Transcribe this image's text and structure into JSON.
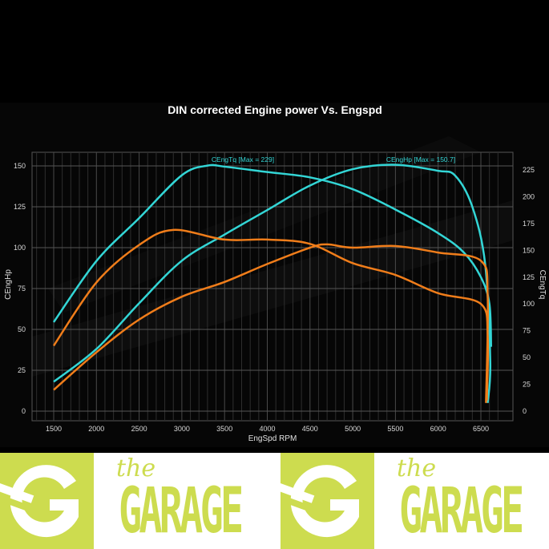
{
  "chart_data": {
    "type": "line",
    "title": "DIN corrected Engine power Vs. Engspd",
    "xlabel": "EngSpd RPM",
    "ylabel_left": "CEngHp",
    "ylabel_right": "CEngTq",
    "xlim": [
      1200,
      6850
    ],
    "ylim_left": [
      0,
      158
    ],
    "ylim_right": [
      0,
      237
    ],
    "x_ticks": [
      "1500",
      "2000",
      "2500",
      "3000",
      "3500",
      "4000",
      "4500",
      "5000",
      "5500",
      "6000",
      "6500"
    ],
    "y_left_ticks": [
      "0",
      "25",
      "50",
      "75",
      "100",
      "125",
      "150"
    ],
    "y_right_ticks": [
      "0",
      "25",
      "50",
      "75",
      "100",
      "125",
      "150",
      "175",
      "200",
      "225"
    ],
    "grid": true,
    "series": [
      {
        "name": "CEngHp",
        "label": "CEngHp [Max = 150.7]",
        "axis": "left",
        "color": "#33d6d6",
        "x": [
          1500,
          2000,
          2500,
          3000,
          3500,
          4000,
          4500,
          5000,
          5500,
          6000,
          6200,
          6400,
          6550,
          6610,
          6580
        ],
        "y": [
          18,
          38,
          66,
          92,
          108,
          123,
          138,
          148,
          150.7,
          147,
          144,
          125,
          90,
          30,
          5
        ]
      },
      {
        "name": "CEngTq",
        "label": "CEngTq [Max = 229]",
        "axis": "right",
        "color": "#33d6d6",
        "x": [
          1500,
          2000,
          2500,
          3000,
          3300,
          3500,
          4000,
          4500,
          5000,
          5500,
          6000,
          6300,
          6500,
          6600,
          6620
        ],
        "y": [
          83,
          140,
          180,
          220,
          229,
          228,
          223,
          218,
          207,
          188,
          166,
          148,
          125,
          100,
          60
        ]
      },
      {
        "axis": "left",
        "color": "#f07d1a",
        "x": [
          1500,
          2000,
          2500,
          3000,
          3500,
          4000,
          4500,
          4700,
          5000,
          5500,
          6000,
          6500,
          6580,
          6560
        ],
        "y": [
          13,
          36,
          56,
          70,
          79,
          90,
          100,
          102,
          100,
          101,
          97,
          92,
          70,
          5
        ]
      },
      {
        "axis": "right",
        "color": "#f07d1a",
        "x": [
          1500,
          2000,
          2500,
          2900,
          3500,
          4000,
          4500,
          5000,
          5500,
          6000,
          6500,
          6580,
          6570
        ],
        "y": [
          61,
          120,
          155,
          169,
          160,
          160,
          156,
          138,
          127,
          110,
          100,
          70,
          10
        ]
      }
    ]
  },
  "banner": {
    "logo_text_small": "the",
    "logo_text_large": "GARAGE",
    "brand_color": "#cddc4f"
  }
}
